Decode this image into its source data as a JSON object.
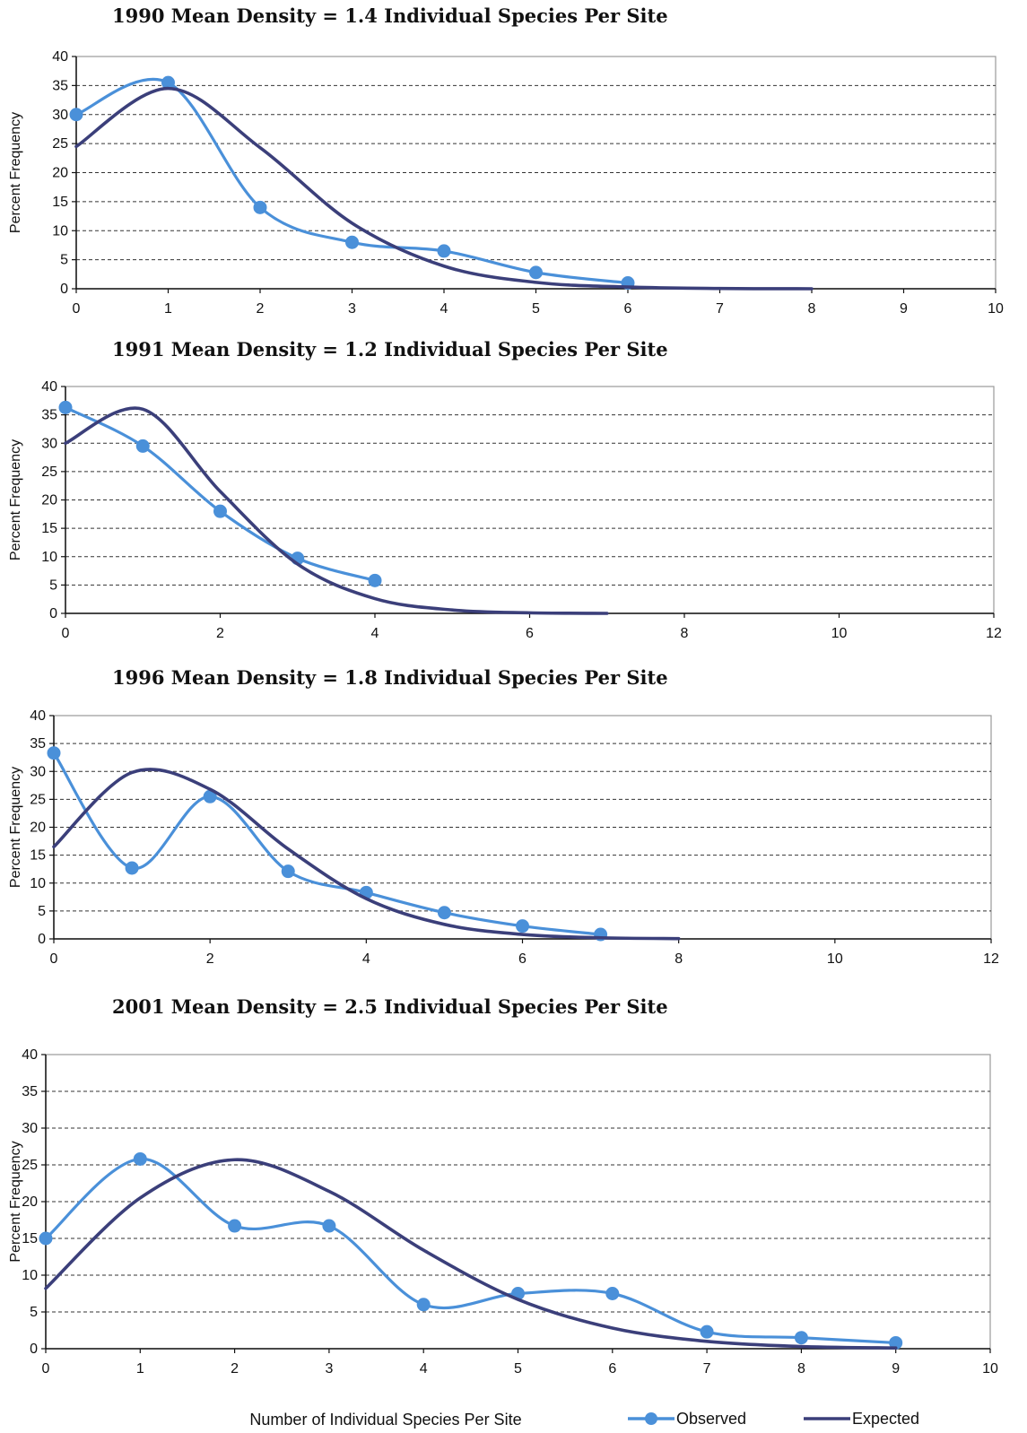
{
  "chart_data": [
    {
      "type": "line",
      "title": "1990 Mean Density = 1.4 Individual Species Per Site",
      "xlabel": "",
      "ylabel": "Percent Frequency",
      "xlim": [
        0,
        10
      ],
      "ylim": [
        0,
        40
      ],
      "xticks": [
        0,
        1,
        2,
        3,
        4,
        5,
        6,
        7,
        8,
        9,
        10
      ],
      "yticks": [
        0,
        5,
        10,
        15,
        20,
        25,
        30,
        35,
        40
      ],
      "grid": true,
      "series": [
        {
          "name": "Observed",
          "color": "#4a90d9",
          "markers": true,
          "x": [
            0,
            1,
            2,
            3,
            4,
            5,
            6
          ],
          "y": [
            30,
            35.5,
            14,
            8,
            6.5,
            2.8,
            1
          ]
        },
        {
          "name": "Expected",
          "color": "#3b3f7a",
          "markers": false,
          "x": [
            0,
            1,
            2,
            3,
            4,
            5,
            6,
            7,
            8
          ],
          "y": [
            24.5,
            34.5,
            24.3,
            11.3,
            3.9,
            1.1,
            0.3,
            0.05,
            0
          ]
        }
      ]
    },
    {
      "type": "line",
      "title": "1991 Mean Density = 1.2 Individual Species Per Site",
      "xlabel": "",
      "ylabel": "Percent Frequency",
      "xlim": [
        0,
        12
      ],
      "ylim": [
        0,
        40
      ],
      "xticks": [
        0,
        2,
        4,
        6,
        8,
        10,
        12
      ],
      "yticks": [
        0,
        5,
        10,
        15,
        20,
        25,
        30,
        35,
        40
      ],
      "grid": true,
      "series": [
        {
          "name": "Observed",
          "color": "#4a90d9",
          "markers": true,
          "x": [
            0,
            1,
            2,
            3,
            4
          ],
          "y": [
            36.3,
            29.5,
            18,
            9.7,
            5.8
          ]
        },
        {
          "name": "Expected",
          "color": "#3b3f7a",
          "markers": false,
          "x": [
            0,
            1,
            2,
            3,
            4,
            5,
            6,
            7
          ],
          "y": [
            30,
            36,
            21.5,
            8.7,
            2.6,
            0.6,
            0.1,
            0
          ]
        }
      ]
    },
    {
      "type": "line",
      "title": "1996 Mean Density = 1.8 Individual Species Per Site",
      "xlabel": "",
      "ylabel": "Percent Frequency",
      "xlim": [
        0,
        12
      ],
      "ylim": [
        0,
        40
      ],
      "xticks": [
        0,
        2,
        4,
        6,
        8,
        10,
        12
      ],
      "yticks": [
        0,
        5,
        10,
        15,
        20,
        25,
        30,
        35,
        40
      ],
      "grid": true,
      "series": [
        {
          "name": "Observed",
          "color": "#4a90d9",
          "markers": true,
          "x": [
            0,
            1,
            2,
            3,
            4,
            5,
            6,
            7
          ],
          "y": [
            33.3,
            12.7,
            25.5,
            12.1,
            8.3,
            4.7,
            2.3,
            0.8
          ]
        },
        {
          "name": "Expected",
          "color": "#3b3f7a",
          "markers": false,
          "x": [
            0,
            1,
            2,
            3,
            4,
            5,
            6,
            7,
            8
          ],
          "y": [
            16.5,
            29.8,
            26.8,
            16.1,
            7.2,
            2.6,
            0.8,
            0.2,
            0.05
          ]
        }
      ]
    },
    {
      "type": "line",
      "title": "2001 Mean Density = 2.5 Individual Species Per Site",
      "xlabel": "Number of Individual Species Per Site",
      "ylabel": "Percent Frequency",
      "xlim": [
        0,
        10
      ],
      "ylim": [
        0,
        40
      ],
      "xticks": [
        0,
        1,
        2,
        3,
        4,
        5,
        6,
        7,
        8,
        9,
        10
      ],
      "yticks": [
        0,
        5,
        10,
        15,
        20,
        25,
        30,
        35,
        40
      ],
      "grid": true,
      "legend": {
        "position": "bottom-right",
        "entries": [
          "Observed",
          "Expected"
        ]
      },
      "series": [
        {
          "name": "Observed",
          "color": "#4a90d9",
          "markers": true,
          "x": [
            0,
            1,
            2,
            3,
            4,
            5,
            6,
            7,
            8,
            9
          ],
          "y": [
            15,
            25.8,
            16.7,
            16.7,
            6,
            7.5,
            7.5,
            2.3,
            1.5,
            0.8
          ]
        },
        {
          "name": "Expected",
          "color": "#3b3f7a",
          "markers": false,
          "x": [
            0,
            1,
            2,
            3,
            4,
            5,
            6,
            7,
            8,
            9
          ],
          "y": [
            8.2,
            20.5,
            25.7,
            21.4,
            13.4,
            6.7,
            2.8,
            1,
            0.3,
            0.1
          ]
        }
      ]
    }
  ]
}
